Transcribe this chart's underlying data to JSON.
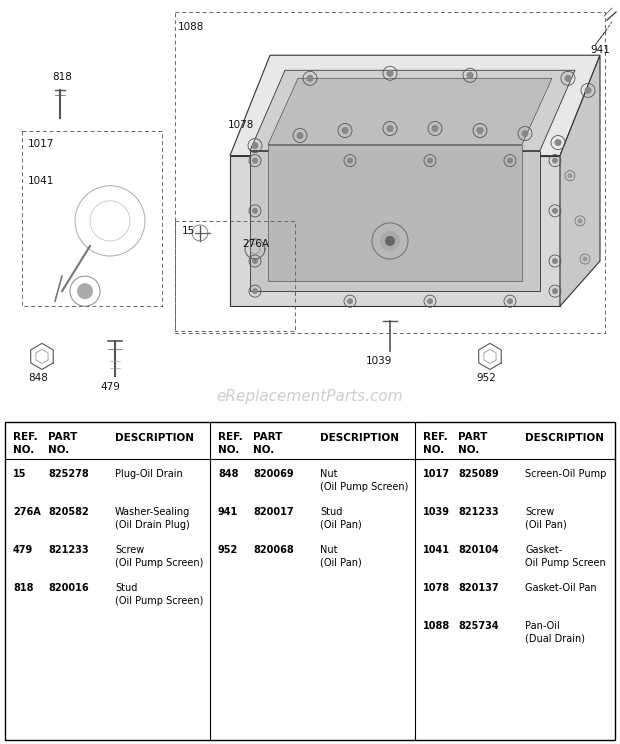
{
  "watermark": "eReplacementParts.com",
  "col1": {
    "rows": [
      {
        "ref": "15",
        "part": "825278",
        "desc1": "Plug-Oil Drain",
        "desc2": ""
      },
      {
        "ref": "276A",
        "part": "820582",
        "desc1": "Washer-Sealing",
        "desc2": "(Oil Drain Plug)"
      },
      {
        "ref": "479",
        "part": "821233",
        "desc1": "Screw",
        "desc2": "(Oil Pump Screen)"
      },
      {
        "ref": "818",
        "part": "820016",
        "desc1": "Stud",
        "desc2": "(Oil Pump Screen)"
      }
    ]
  },
  "col2": {
    "rows": [
      {
        "ref": "848",
        "part": "820069",
        "desc1": "Nut",
        "desc2": "(Oil Pump Screen)"
      },
      {
        "ref": "941",
        "part": "820017",
        "desc1": "Stud",
        "desc2": "(Oil Pan)"
      },
      {
        "ref": "952",
        "part": "820068",
        "desc1": "Nut",
        "desc2": "(Oil Pan)"
      }
    ]
  },
  "col3": {
    "rows": [
      {
        "ref": "1017",
        "part": "825089",
        "desc1": "Screen-Oil Pump",
        "desc2": ""
      },
      {
        "ref": "1039",
        "part": "821233",
        "desc1": "Screw",
        "desc2": "(Oil Pan)"
      },
      {
        "ref": "1041",
        "part": "820104",
        "desc1": "Gasket-",
        "desc2": "Oil Pump Screen"
      },
      {
        "ref": "1078",
        "part": "820137",
        "desc1": "Gasket-Oil Pan",
        "desc2": ""
      },
      {
        "ref": "1088",
        "part": "825734",
        "desc1": "Pan-Oil",
        "desc2": "(Dual Drain)"
      }
    ]
  }
}
